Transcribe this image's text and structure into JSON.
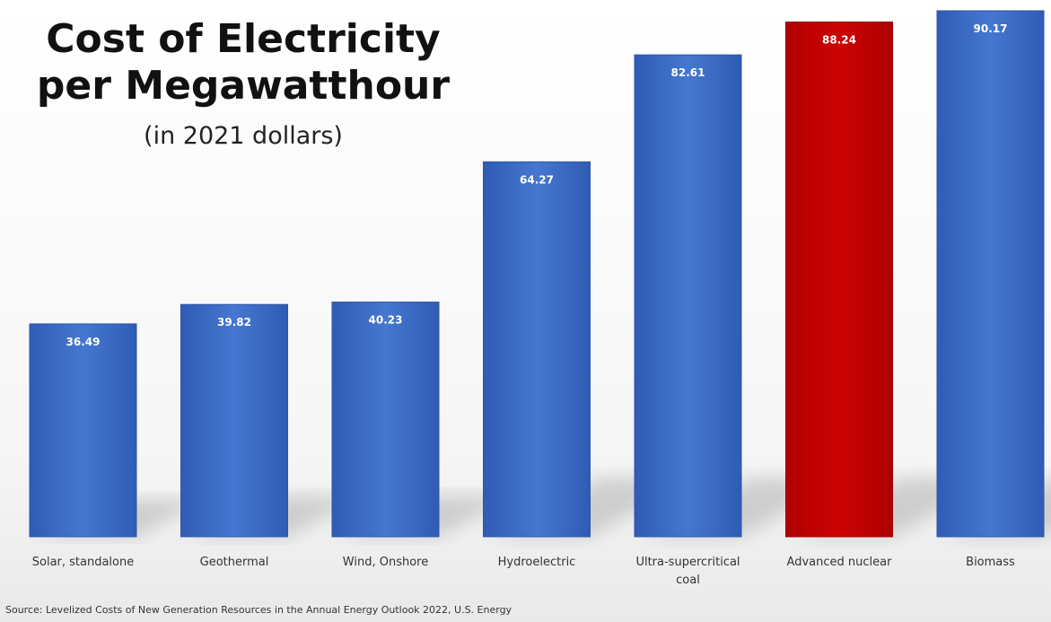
{
  "chart_data": {
    "type": "bar",
    "title_line1": "Cost of Electricity",
    "title_line2": "per Megawatthour",
    "subtitle": "(in 2021 dollars)",
    "categories": [
      [
        "Solar, standalone"
      ],
      [
        "Geothermal"
      ],
      [
        "Wind, Onshore"
      ],
      [
        "Hydroelectric"
      ],
      [
        "Ultra-supercritical",
        "coal"
      ],
      [
        "Advanced nuclear"
      ],
      [
        "Biomass"
      ]
    ],
    "values": [
      36.49,
      39.82,
      40.23,
      64.27,
      82.61,
      88.24,
      90.17
    ],
    "value_labels": [
      "36.49",
      "39.82",
      "40.23",
      "64.27",
      "82.61",
      "88.24",
      "90.17"
    ],
    "highlight_index": 5,
    "ylim": [
      0,
      90.17
    ],
    "grid": false,
    "colors": {
      "bar": "#3f6fc9",
      "bar_dark": "#2d55a8",
      "highlight": "#c00000",
      "highlight_dark": "#9a0000"
    },
    "source": "Source: Levelized Costs of New Generation Resources in the Annual Energy Outlook 2022, U.S. Energy"
  }
}
